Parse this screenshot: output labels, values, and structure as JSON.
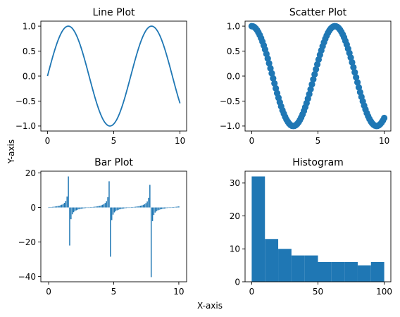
{
  "figure": {
    "xlabel": "X-axis",
    "ylabel": "Y-axis"
  },
  "colors": {
    "series": "#1f77b4"
  },
  "chart_data": [
    {
      "type": "line",
      "title": "Line Plot",
      "function": "sin",
      "x_range": [
        0,
        10
      ],
      "xlim": [
        -0.5,
        10.5
      ],
      "ylim": [
        -1.1,
        1.1
      ],
      "xticks": [
        0,
        5,
        10
      ],
      "xtick_labels": [
        "0",
        "5",
        "10"
      ],
      "yticks": [
        1.0,
        0.5,
        0.0,
        -0.5,
        -1.0
      ],
      "ytick_labels": [
        "1.0",
        "0.5",
        "0.0",
        "−0.5",
        "−1.0"
      ],
      "grid": false
    },
    {
      "type": "scatter",
      "title": "Scatter Plot",
      "function": "cos",
      "x_range": [
        0,
        10
      ],
      "n_points": 100,
      "xlim": [
        -0.5,
        10.5
      ],
      "ylim": [
        -1.1,
        1.1
      ],
      "xticks": [
        0,
        5,
        10
      ],
      "xtick_labels": [
        "0",
        "5",
        "10"
      ],
      "yticks": [
        1.0,
        0.5,
        0.0,
        -0.5,
        -1.0
      ],
      "ytick_labels": [
        "1.0",
        "0.5",
        "0.0",
        "−0.5",
        "−1.0"
      ],
      "grid": false
    },
    {
      "type": "bar",
      "title": "Bar Plot",
      "function": "tan",
      "x_range": [
        0,
        10
      ],
      "n_points": 100,
      "xlim": [
        -0.6,
        10.6
      ],
      "ylim": [
        -43,
        21
      ],
      "xticks": [
        0,
        5,
        10
      ],
      "xtick_labels": [
        "0",
        "5",
        "10"
      ],
      "yticks": [
        20,
        0,
        -20,
        -40
      ],
      "ytick_labels": [
        "20",
        "0",
        "−20",
        "−40"
      ],
      "grid": false
    },
    {
      "type": "bar",
      "title": "Histogram",
      "bin_edges": [
        0,
        10,
        20,
        30,
        40,
        50,
        60,
        70,
        80,
        90,
        100
      ],
      "counts": [
        32,
        13,
        10,
        8,
        8,
        6,
        6,
        6,
        5,
        6
      ],
      "xlim": [
        -5,
        105
      ],
      "ylim": [
        0,
        33.6
      ],
      "xticks": [
        0,
        50,
        100
      ],
      "xtick_labels": [
        "0",
        "50",
        "100"
      ],
      "yticks": [
        0,
        10,
        20,
        30
      ],
      "ytick_labels": [
        "0",
        "10",
        "20",
        "30"
      ],
      "grid": false
    }
  ]
}
